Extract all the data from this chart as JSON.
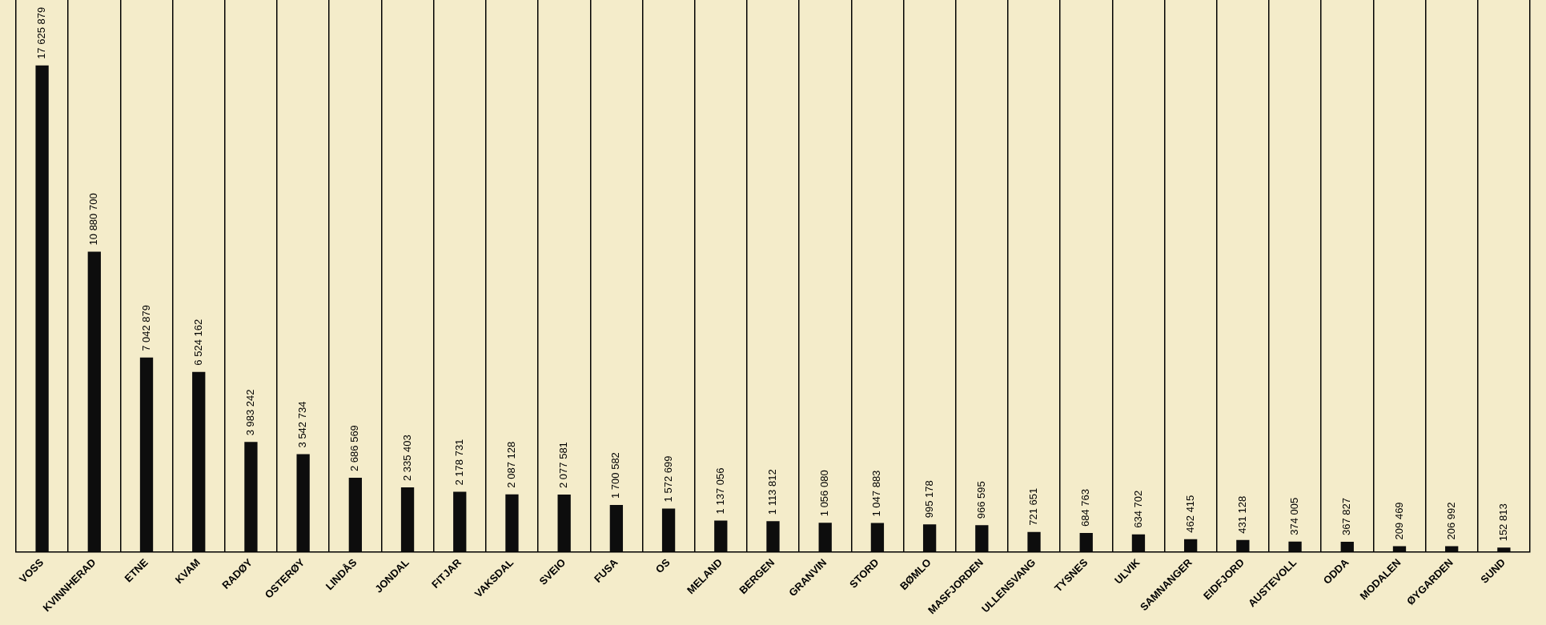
{
  "chart_data": {
    "type": "bar",
    "categories": [
      "VOSS",
      "KVINNHERAD",
      "ETNE",
      "KVAM",
      "RADØY",
      "OSTERØY",
      "LINDÅS",
      "JONDAL",
      "FITJAR",
      "VAKSDAL",
      "SVEIO",
      "FUSA",
      "OS",
      "MELAND",
      "BERGEN",
      "GRANVIN",
      "STORD",
      "BØMLO",
      "MASFJORDEN",
      "ULLENSVANG",
      "TYSNES",
      "ULVIK",
      "SAMNANGER",
      "EIDFJORD",
      "AUSTEVOLL",
      "ODDA",
      "MODALEN",
      "ØYGARDEN",
      "SUND"
    ],
    "values": [
      17625879,
      10880700,
      7042879,
      6524162,
      3983242,
      3542734,
      2686569,
      2335403,
      2178731,
      2087128,
      2077581,
      1700582,
      1572699,
      1137056,
      1113812,
      1056080,
      1047883,
      995178,
      966595,
      721651,
      684763,
      634702,
      462415,
      431128,
      374005,
      367827,
      209469,
      206992,
      152813
    ],
    "value_labels": [
      "17 625 879",
      "10 880 700",
      "7 042 879",
      "6 524 162",
      "3 983 242",
      "3 542 734",
      "2 686 569",
      "2 335 403",
      "2 178 731",
      "2 087 128",
      "2 077 581",
      "1 700 582",
      "1 572 699",
      "1 137 056",
      "1 113 812",
      "1 056 080",
      "1 047 883",
      "995 178",
      "966 595",
      "721 651",
      "684 763",
      "634 702",
      "462 415",
      "431 128",
      "374 005",
      "367 827",
      "209 469",
      "206 992",
      "152 813"
    ],
    "color": "#0d0d0d",
    "grid": "x",
    "tick_labels": "x",
    "legend": false
  }
}
